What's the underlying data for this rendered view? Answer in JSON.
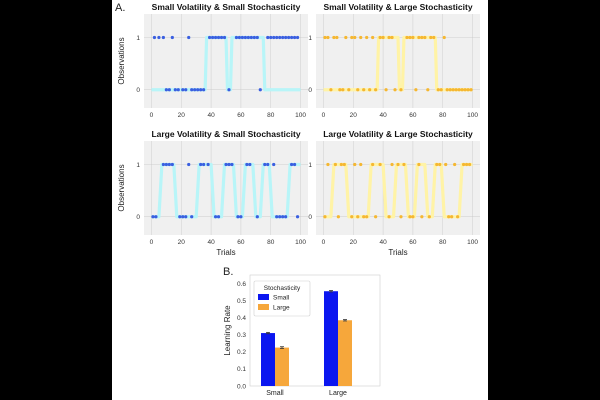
{
  "figure": {
    "panel_a_label": "A.",
    "panel_b_label": "B.",
    "xlabel": "Trials",
    "ylabel": "Observations",
    "colors": {
      "background": "#000000",
      "panel_bg": "#f0f0f0",
      "grid": "#c7c7c7",
      "small_stoch_line": "#b8f5f8",
      "small_stoch_dots": "#3a5fe0",
      "large_stoch_line": "#fff3a6",
      "large_stoch_dots": "#f5b731",
      "bar_small": "#0b16f0",
      "bar_large": "#f6a73b"
    }
  },
  "chart_data": [
    {
      "type": "line",
      "id": "ss",
      "title": "Small Volatility & Small Stochasticity",
      "xlim": [
        -5,
        105
      ],
      "xticks": [
        0,
        20,
        40,
        60,
        80,
        100
      ],
      "ylim": [
        -0.35,
        1.45
      ],
      "yticks": [
        0,
        1
      ],
      "latent_series": {
        "name": "Latent state",
        "style": "ss",
        "x": [
          0,
          36,
          37,
          50,
          51,
          53,
          54,
          75,
          76,
          100
        ],
        "y": [
          0,
          0,
          1,
          1,
          0,
          0,
          1,
          1,
          0,
          0
        ]
      },
      "obs_series": {
        "name": "Observations",
        "style": "ss",
        "x": [
          2,
          5,
          8,
          10,
          12,
          14,
          16,
          18,
          21,
          23,
          25,
          27,
          29,
          31,
          33,
          35,
          39,
          41,
          43,
          45,
          47,
          49,
          52,
          57,
          59,
          61,
          63,
          65,
          67,
          69,
          71,
          73,
          78,
          80,
          82,
          84,
          86,
          88,
          90,
          92,
          94,
          96,
          98
        ],
        "y": [
          1,
          1,
          1,
          0,
          0,
          1,
          0,
          0,
          0,
          0,
          1,
          0,
          0,
          0,
          0,
          0,
          1,
          1,
          1,
          1,
          1,
          1,
          0,
          1,
          1,
          1,
          1,
          1,
          1,
          1,
          1,
          0,
          1,
          1,
          1,
          1,
          1,
          1,
          1,
          1,
          1,
          1,
          1
        ]
      }
    },
    {
      "type": "line",
      "id": "sl",
      "title": "Small Volatility & Large Stochasticity",
      "xlim": [
        -5,
        105
      ],
      "xticks": [
        0,
        20,
        40,
        60,
        80,
        100
      ],
      "ylim": [
        -0.35,
        1.45
      ],
      "yticks": [
        0,
        1
      ],
      "latent_series": {
        "name": "Latent state",
        "style": "sl",
        "x": [
          0,
          36,
          37,
          50,
          51,
          53,
          54,
          75,
          76,
          100
        ],
        "y": [
          0,
          0,
          1,
          1,
          0,
          0,
          1,
          1,
          0,
          0
        ]
      },
      "obs_series": {
        "name": "Observations",
        "style": "sl",
        "x": [
          1,
          3,
          5,
          7,
          9,
          11,
          13,
          15,
          17,
          19,
          21,
          23,
          25,
          27,
          29,
          31,
          33,
          35,
          38,
          40,
          42,
          44,
          46,
          48,
          52,
          56,
          58,
          60,
          62,
          64,
          66,
          68,
          70,
          72,
          74,
          77,
          79,
          81,
          83,
          85,
          87,
          89,
          91,
          93,
          95,
          97,
          99
        ],
        "y": [
          1,
          1,
          0,
          1,
          1,
          0,
          0,
          1,
          0,
          1,
          1,
          0,
          1,
          0,
          1,
          0,
          1,
          0,
          1,
          1,
          0,
          1,
          1,
          0,
          0,
          1,
          1,
          1,
          0,
          1,
          1,
          1,
          0,
          1,
          1,
          0,
          0,
          1,
          0,
          0,
          0,
          0,
          0,
          0,
          0,
          0,
          0
        ]
      }
    },
    {
      "type": "line",
      "id": "ls",
      "title": "Large Volatility & Small Stochasticity",
      "xlim": [
        -5,
        105
      ],
      "xticks": [
        0,
        20,
        40,
        60,
        80,
        100
      ],
      "ylim": [
        -0.35,
        1.45
      ],
      "yticks": [
        0,
        1
      ],
      "latent_series": {
        "name": "Latent state",
        "style": "ls",
        "x": [
          0,
          5,
          7,
          15,
          17,
          30,
          32,
          40,
          42,
          47,
          49,
          55,
          57,
          61,
          63,
          68,
          70,
          73,
          75,
          79,
          81,
          91,
          93,
          100
        ],
        "y": [
          0,
          0,
          1,
          1,
          0,
          0,
          1,
          1,
          0,
          0,
          1,
          1,
          0,
          0,
          1,
          1,
          0,
          0,
          1,
          1,
          0,
          0,
          1,
          1
        ]
      },
      "obs_series": {
        "name": "Observations",
        "style": "ls",
        "x": [
          1,
          3,
          8,
          10,
          12,
          14,
          19,
          21,
          23,
          25,
          27,
          33,
          35,
          38,
          43,
          45,
          50,
          52,
          54,
          58,
          60,
          64,
          66,
          71,
          76,
          78,
          82,
          84,
          86,
          88,
          90,
          94,
          96,
          98
        ],
        "y": [
          0,
          0,
          1,
          1,
          1,
          1,
          0,
          0,
          0,
          1,
          0,
          1,
          1,
          1,
          0,
          0,
          1,
          1,
          1,
          0,
          0,
          1,
          1,
          0,
          1,
          1,
          1,
          0,
          0,
          0,
          0,
          1,
          1,
          0
        ]
      }
    },
    {
      "type": "line",
      "id": "ll",
      "title": "Large Volatility & Large Stochasticity",
      "xlim": [
        -5,
        105
      ],
      "xticks": [
        0,
        20,
        40,
        60,
        80,
        100
      ],
      "ylim": [
        -0.35,
        1.45
      ],
      "yticks": [
        0,
        1
      ],
      "latent_series": {
        "name": "Latent state",
        "style": "ll",
        "x": [
          0,
          5,
          7,
          15,
          17,
          30,
          32,
          40,
          42,
          47,
          49,
          55,
          57,
          61,
          63,
          68,
          70,
          73,
          75,
          79,
          81,
          91,
          93,
          100
        ],
        "y": [
          0,
          0,
          1,
          1,
          0,
          0,
          1,
          1,
          0,
          0,
          1,
          1,
          0,
          0,
          1,
          1,
          0,
          0,
          1,
          1,
          0,
          0,
          1,
          1
        ]
      },
      "obs_series": {
        "name": "Observations",
        "style": "ll",
        "x": [
          1,
          3,
          8,
          10,
          12,
          14,
          19,
          21,
          23,
          25,
          27,
          29,
          33,
          35,
          38,
          44,
          46,
          50,
          52,
          54,
          58,
          60,
          64,
          66,
          71,
          76,
          78,
          82,
          84,
          86,
          88,
          90,
          94,
          96,
          98
        ],
        "y": [
          0,
          1,
          1,
          0,
          1,
          1,
          0,
          1,
          0,
          1,
          0,
          0,
          1,
          0,
          1,
          0,
          1,
          1,
          0,
          1,
          0,
          0,
          1,
          0,
          0,
          1,
          1,
          1,
          0,
          0,
          1,
          0,
          1,
          1,
          1
        ]
      }
    },
    {
      "type": "bar",
      "id": "lr",
      "categories": [
        "Small",
        "Large"
      ],
      "xlabel": "",
      "ylabel": "Learning Rate",
      "ylim": [
        0,
        0.65
      ],
      "yticks": [
        0.0,
        0.1,
        0.2,
        0.3,
        0.4,
        0.5,
        0.6
      ],
      "ytick_labels": [
        "0.0",
        "0.1",
        "0.2",
        "0.3",
        "0.4",
        "0.5",
        "0.6"
      ],
      "legend": {
        "title": "Stochasticity",
        "position": "top-left"
      },
      "series": [
        {
          "name": "Small",
          "values": [
            0.31,
            0.555
          ],
          "error": [
            0.004,
            0.004
          ]
        },
        {
          "name": "Large",
          "values": [
            0.225,
            0.385
          ],
          "error": [
            0.005,
            0.004
          ]
        }
      ]
    }
  ]
}
